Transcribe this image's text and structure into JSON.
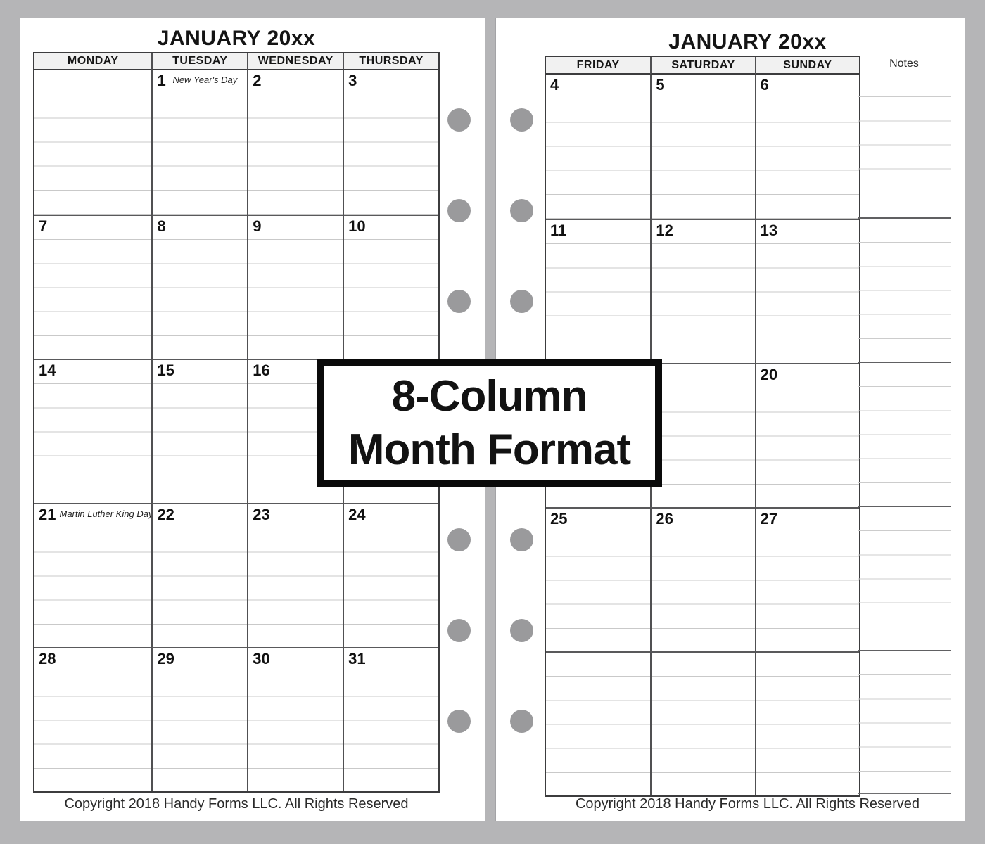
{
  "overlay": {
    "line1": "8-Column",
    "line2": "Month Format"
  },
  "left_page": {
    "title": "JANUARY 20xx",
    "headers": [
      "MONDAY",
      "TUESDAY",
      "WEDNESDAY",
      "THURSDAY"
    ],
    "weeks": [
      [
        {
          "date": ""
        },
        {
          "date": "1",
          "holiday": "New Year's Day"
        },
        {
          "date": "2"
        },
        {
          "date": "3"
        }
      ],
      [
        {
          "date": "7"
        },
        {
          "date": "8"
        },
        {
          "date": "9"
        },
        {
          "date": "10"
        }
      ],
      [
        {
          "date": "14"
        },
        {
          "date": "15"
        },
        {
          "date": "16"
        },
        {
          "date": ""
        }
      ],
      [
        {
          "date": "21",
          "holiday": "Martin Luther King Day"
        },
        {
          "date": "22"
        },
        {
          "date": "23"
        },
        {
          "date": "24"
        }
      ],
      [
        {
          "date": "28"
        },
        {
          "date": "29"
        },
        {
          "date": "30"
        },
        {
          "date": "31"
        }
      ]
    ],
    "copyright": "Copyright 2018 Handy Forms LLC. All Rights Reserved"
  },
  "right_page": {
    "title": "JANUARY 20xx",
    "headers": [
      "FRIDAY",
      "SATURDAY",
      "SUNDAY"
    ],
    "notes_label": "Notes",
    "weeks": [
      [
        "4",
        "5",
        "6"
      ],
      [
        "11",
        "12",
        "13"
      ],
      [
        "",
        "",
        "20"
      ],
      [
        "25",
        "26",
        "27"
      ],
      [
        "",
        "",
        ""
      ]
    ],
    "copyright": "Copyright 2018 Handy Forms LLC. All Rights Reserved"
  },
  "colors": {
    "background": "#b5b5b7",
    "page": "#ffffff",
    "binder_hole": "#9a9a9c",
    "header_background": "#f1f1f1",
    "grid_dark": "#3c3c3e",
    "grid_light": "#c9c9c9",
    "overlay_border": "#0a0a0a"
  }
}
